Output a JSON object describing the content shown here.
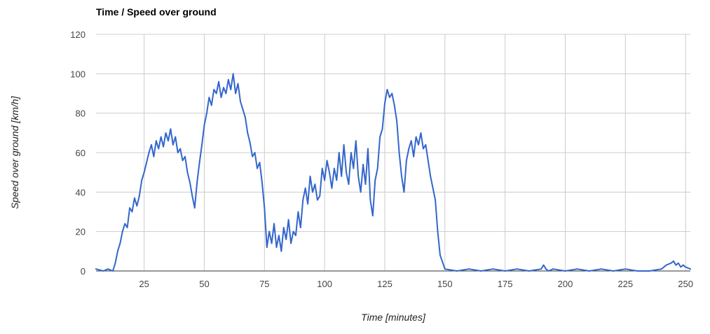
{
  "chart_data": {
    "type": "line",
    "title": "Time / Speed over ground",
    "xlabel": "Time [minutes]",
    "ylabel": "Speed over ground [km/h]",
    "xlim": [
      5,
      252
    ],
    "ylim": [
      0,
      120
    ],
    "x_ticks": [
      25,
      50,
      75,
      100,
      125,
      150,
      175,
      200,
      225,
      250
    ],
    "y_ticks": [
      0,
      20,
      40,
      60,
      80,
      100,
      120
    ],
    "grid": true,
    "legend": "none",
    "line_color": "#3366cc",
    "series": [
      {
        "x": [
          5,
          8,
          10,
          12,
          13,
          14,
          15,
          16,
          17,
          18,
          19,
          20,
          21,
          22,
          23,
          24,
          25,
          26,
          27,
          28,
          29,
          30,
          31,
          32,
          33,
          34,
          35,
          36,
          37,
          38,
          39,
          40,
          41,
          42,
          43,
          44,
          45,
          46,
          47,
          48,
          49,
          50,
          51,
          52,
          53,
          54,
          55,
          56,
          57,
          58,
          59,
          60,
          61,
          62,
          63,
          64,
          65,
          66,
          67,
          68,
          69,
          70,
          71,
          72,
          73,
          74,
          75,
          76,
          77,
          78,
          79,
          80,
          81,
          82,
          83,
          84,
          85,
          86,
          87,
          88,
          89,
          90,
          91,
          92,
          93,
          94,
          95,
          96,
          97,
          98,
          99,
          100,
          101,
          102,
          103,
          104,
          105,
          106,
          107,
          108,
          109,
          110,
          111,
          112,
          113,
          114,
          115,
          116,
          117,
          118,
          119,
          120,
          121,
          122,
          123,
          124,
          125,
          126,
          127,
          128,
          129,
          130,
          131,
          132,
          133,
          134,
          135,
          136,
          137,
          138,
          139,
          140,
          141,
          142,
          143,
          144,
          145,
          146,
          147,
          148,
          150,
          155,
          160,
          165,
          170,
          175,
          180,
          185,
          190,
          191,
          192,
          193,
          195,
          200,
          205,
          210,
          215,
          220,
          225,
          230,
          235,
          240,
          242,
          244,
          245,
          246,
          247,
          248,
          249,
          250,
          252
        ],
        "y": [
          1,
          0,
          1,
          0,
          4,
          10,
          14,
          20,
          24,
          22,
          32,
          30,
          37,
          33,
          38,
          46,
          50,
          55,
          60,
          64,
          58,
          66,
          62,
          68,
          63,
          70,
          66,
          72,
          64,
          68,
          60,
          62,
          56,
          58,
          50,
          45,
          38,
          32,
          45,
          55,
          64,
          74,
          80,
          88,
          84,
          92,
          90,
          96,
          88,
          93,
          90,
          97,
          92,
          100,
          90,
          95,
          86,
          82,
          78,
          70,
          65,
          58,
          60,
          52,
          55,
          45,
          32,
          12,
          20,
          14,
          24,
          12,
          18,
          10,
          22,
          16,
          26,
          14,
          20,
          18,
          30,
          22,
          36,
          42,
          34,
          48,
          40,
          44,
          36,
          38,
          52,
          46,
          56,
          50,
          42,
          52,
          46,
          60,
          48,
          64,
          50,
          44,
          60,
          52,
          66,
          48,
          40,
          54,
          44,
          62,
          36,
          28,
          46,
          52,
          68,
          72,
          85,
          92,
          88,
          90,
          84,
          76,
          60,
          48,
          40,
          56,
          62,
          66,
          58,
          68,
          64,
          70,
          62,
          64,
          56,
          48,
          42,
          36,
          20,
          8,
          1,
          0,
          1,
          0,
          1,
          0,
          1,
          0,
          1,
          3,
          1,
          0,
          1,
          0,
          1,
          0,
          1,
          0,
          1,
          0,
          0,
          1,
          3,
          4,
          5,
          3,
          4,
          2,
          3,
          2,
          1
        ]
      }
    ]
  }
}
